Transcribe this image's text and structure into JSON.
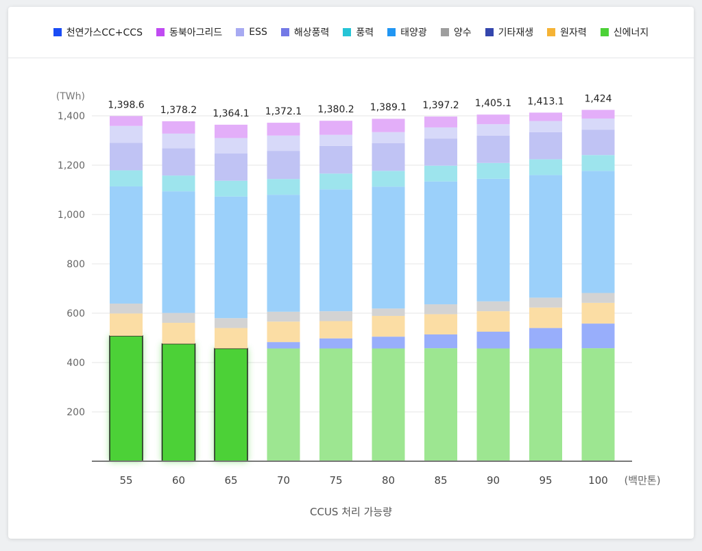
{
  "legend": [
    {
      "label": "천연가스CC+CCS",
      "color": "#1a4cf5"
    },
    {
      "label": "동북아그리드",
      "color": "#c04bf2"
    },
    {
      "label": "ESS",
      "color": "#a7aaf2"
    },
    {
      "label": "해상풍력",
      "color": "#7379e6"
    },
    {
      "label": "풍력",
      "color": "#26c4d6"
    },
    {
      "label": "태양광",
      "color": "#2196f3"
    },
    {
      "label": "양수",
      "color": "#9e9e9e"
    },
    {
      "label": "기타재생",
      "color": "#3446ad"
    },
    {
      "label": "원자력",
      "color": "#f5b335"
    },
    {
      "label": "신에너지",
      "color": "#4cd137"
    }
  ],
  "chart_data": {
    "type": "bar",
    "stacked": true,
    "categories": [
      "55",
      "60",
      "65",
      "70",
      "75",
      "80",
      "85",
      "90",
      "95",
      "100"
    ],
    "xlabel": "CCUS 처리 가능량",
    "x_unit": "(백만톤)",
    "ylabel": "(TWh)",
    "ylim": [
      0,
      1400
    ],
    "yticks": [
      "200",
      "400",
      "600",
      "800",
      "1,000",
      "1,200",
      "1,400"
    ],
    "grid": true,
    "legend_position": "top",
    "totals": [
      "1,398.6",
      "1,378.2",
      "1,364.1",
      "1,372.1",
      "1,380.2",
      "1,389.1",
      "1,397.2",
      "1,405.1",
      "1,413.1",
      "1,424"
    ],
    "highlighted_categories": [
      "55",
      "60",
      "65"
    ],
    "series": [
      {
        "name": "신에너지",
        "color": "#4cd137",
        "values": [
          508,
          476,
          457,
          457,
          457,
          457,
          458,
          457,
          457,
          458
        ]
      },
      {
        "name": "천연가스CC+CCS",
        "color": "#1a4cf5",
        "values": [
          0,
          0,
          0,
          26,
          41,
          48,
          56,
          68,
          83,
          100
        ]
      },
      {
        "name": "원자력",
        "color": "#f5b335",
        "values": [
          91,
          85,
          83,
          83,
          70,
          84,
          82,
          83,
          83,
          84
        ]
      },
      {
        "name": "기타재생",
        "color": "#3446ad",
        "values": [
          0,
          0,
          0,
          0,
          0,
          0,
          0,
          0,
          0,
          0
        ]
      },
      {
        "name": "양수",
        "color": "#9e9e9e",
        "values": [
          40,
          40,
          40,
          40,
          40,
          30,
          40,
          40,
          40,
          40
        ]
      },
      {
        "name": "태양광",
        "color": "#2196f3",
        "values": [
          475,
          493,
          493,
          474,
          494,
          494,
          498,
          497,
          497,
          495
        ]
      },
      {
        "name": "풍력",
        "color": "#26c4d6",
        "values": [
          65,
          64,
          64,
          64,
          64,
          64,
          64,
          64,
          64,
          64
        ]
      },
      {
        "name": "해상풍력",
        "color": "#7379e6",
        "values": [
          112,
          110,
          111,
          114,
          112,
          112,
          110,
          111,
          110,
          103
        ]
      },
      {
        "name": "ESS",
        "color": "#a7aaf2",
        "values": [
          68,
          60,
          62,
          62,
          45,
          45,
          45,
          46,
          45,
          45
        ]
      },
      {
        "name": "동북아그리드",
        "color": "#c04bf2",
        "values": [
          40,
          50,
          54,
          52,
          57,
          54,
          44,
          39,
          34,
          35
        ]
      }
    ]
  }
}
